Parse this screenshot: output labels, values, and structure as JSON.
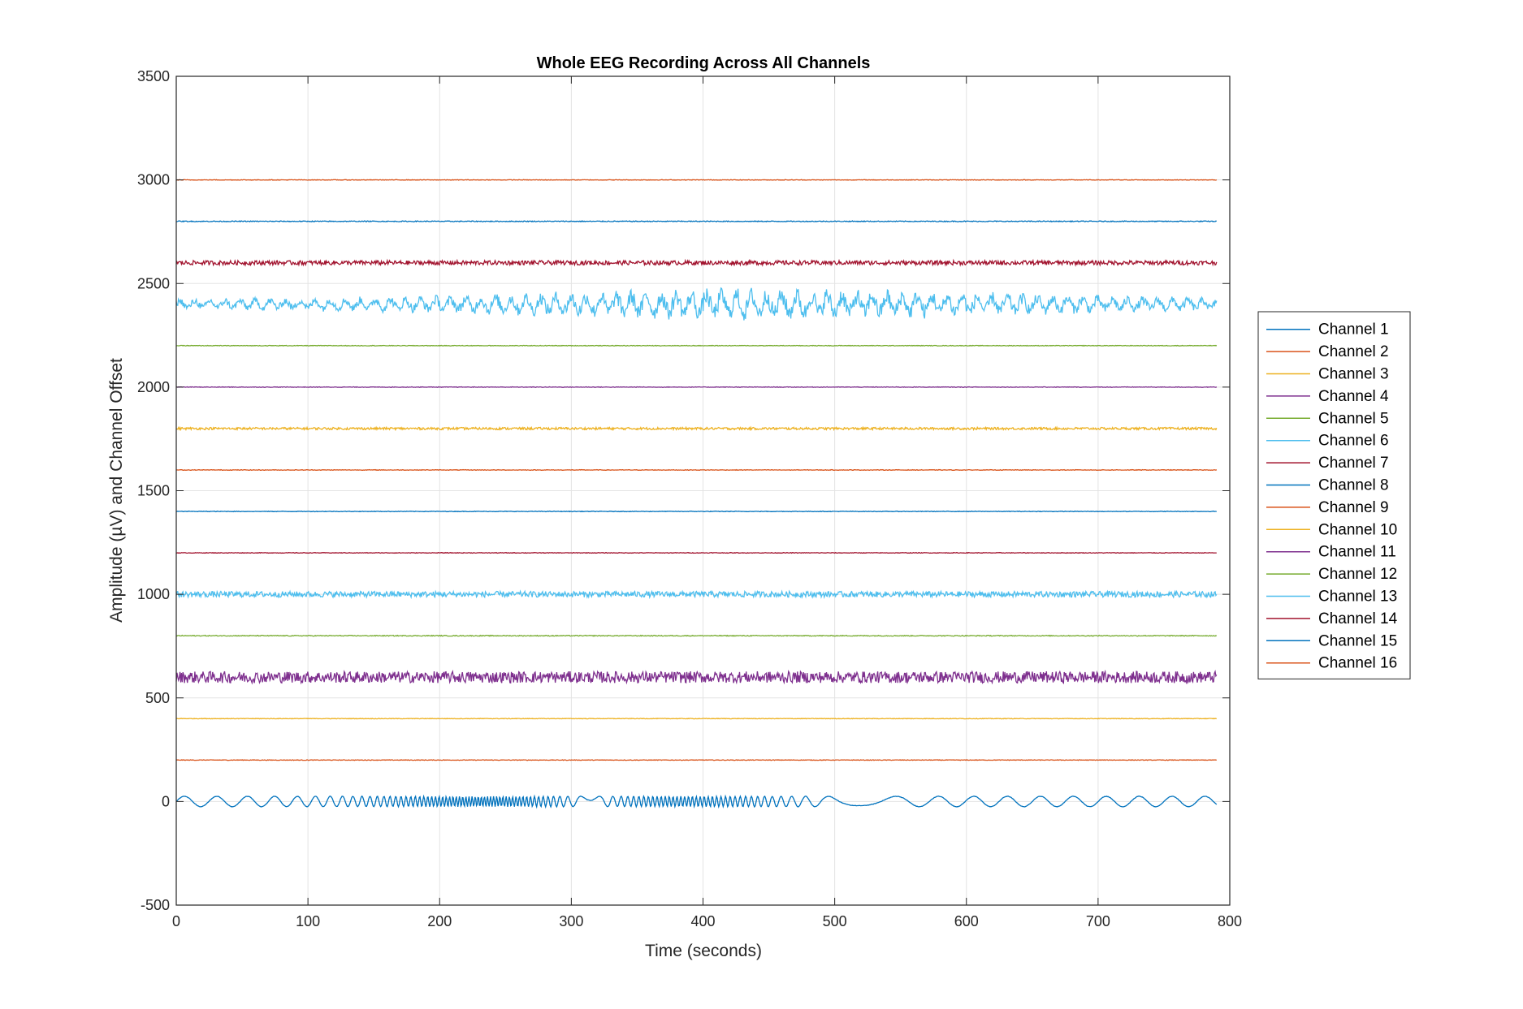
{
  "chart_data": {
    "type": "line",
    "title": "Whole EEG Recording Across All Channels",
    "xlabel": "Time (seconds)",
    "ylabel": "Amplitude (µV) and Channel Offset",
    "xlim": [
      0,
      800
    ],
    "ylim": [
      -500,
      3500
    ],
    "xticks": [
      0,
      100,
      200,
      300,
      400,
      500,
      600,
      700,
      800
    ],
    "yticks": [
      -500,
      0,
      500,
      1000,
      1500,
      2000,
      2500,
      3000,
      3500
    ],
    "grid": true,
    "legend_position": "outside-right",
    "duration_seconds": 790,
    "series": [
      {
        "name": "Channel 1",
        "color": "#0072BD",
        "offset": 0,
        "amplitude": 25
      },
      {
        "name": "Channel 2",
        "color": "#D95319",
        "offset": 200,
        "amplitude": 2
      },
      {
        "name": "Channel 3",
        "color": "#EDB120",
        "offset": 400,
        "amplitude": 2
      },
      {
        "name": "Channel 4",
        "color": "#7E2F8E",
        "offset": 600,
        "amplitude": 40
      },
      {
        "name": "Channel 5",
        "color": "#77AC30",
        "offset": 800,
        "amplitude": 3
      },
      {
        "name": "Channel 6",
        "color": "#4DBEEE",
        "offset": 1000,
        "amplitude": 20
      },
      {
        "name": "Channel 7",
        "color": "#A2142F",
        "offset": 1200,
        "amplitude": 2
      },
      {
        "name": "Channel 8",
        "color": "#0072BD",
        "offset": 1400,
        "amplitude": 2
      },
      {
        "name": "Channel 9",
        "color": "#D95319",
        "offset": 1600,
        "amplitude": 2
      },
      {
        "name": "Channel 10",
        "color": "#EDB120",
        "offset": 1800,
        "amplitude": 8
      },
      {
        "name": "Channel 11",
        "color": "#7E2F8E",
        "offset": 2000,
        "amplitude": 2
      },
      {
        "name": "Channel 12",
        "color": "#77AC30",
        "offset": 2200,
        "amplitude": 2
      },
      {
        "name": "Channel 13",
        "color": "#4DBEEE",
        "offset": 2400,
        "amplitude": 70
      },
      {
        "name": "Channel 14",
        "color": "#A2142F",
        "offset": 2600,
        "amplitude": 15
      },
      {
        "name": "Channel 15",
        "color": "#0072BD",
        "offset": 2800,
        "amplitude": 3
      },
      {
        "name": "Channel 16",
        "color": "#D95319",
        "offset": 3000,
        "amplitude": 2
      }
    ]
  }
}
